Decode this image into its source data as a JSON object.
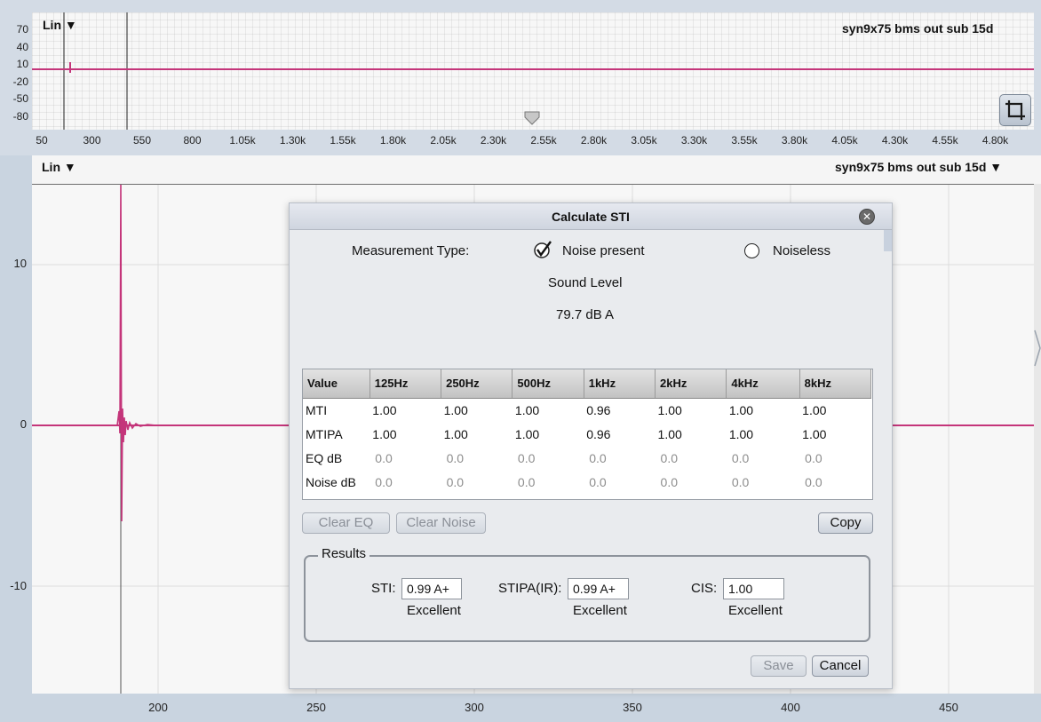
{
  "overview": {
    "scale_label": "Lin",
    "trace_name": "syn9x75 bms out sub 15d",
    "y_ticks": [
      "70",
      "40",
      "10",
      "-20",
      "-50",
      "-80"
    ],
    "x_ticks": [
      "50",
      "300",
      "550",
      "800",
      "1.05k",
      "1.30k",
      "1.55k",
      "1.80k",
      "2.05k",
      "2.30k",
      "2.55k",
      "2.80k",
      "3.05k",
      "3.30k",
      "3.55k",
      "3.80k",
      "4.05k",
      "4.30k",
      "4.55k",
      "4.80k"
    ],
    "trace_color": "#c4357a"
  },
  "main": {
    "scale_label": "Lin",
    "trace_name": "syn9x75 bms out sub 15d",
    "y_ticks": [
      "10",
      "0",
      "-10"
    ],
    "x_ticks": [
      "200",
      "250",
      "300",
      "350",
      "400",
      "450"
    ],
    "trace_color": "#c4357a"
  },
  "dialog": {
    "title": "Calculate STI",
    "measurement_type_label": "Measurement Type:",
    "option_noise_present": "Noise present",
    "option_noiseless": "Noiseless",
    "selected_option": "Noise present",
    "sound_level_label": "Sound Level",
    "sound_level_value": "79.7 dB A",
    "table": {
      "headers": [
        "Value",
        "125Hz",
        "250Hz",
        "500Hz",
        "1kHz",
        "2kHz",
        "4kHz",
        "8kHz"
      ],
      "rows": [
        {
          "label": "MTI",
          "values": [
            "1.00",
            "1.00",
            "1.00",
            "0.96",
            "1.00",
            "1.00",
            "1.00"
          ],
          "dim": false
        },
        {
          "label": "MTIPA",
          "values": [
            "1.00",
            "1.00",
            "1.00",
            "0.96",
            "1.00",
            "1.00",
            "1.00"
          ],
          "dim": false
        },
        {
          "label": "EQ dB",
          "values": [
            "0.0",
            "0.0",
            "0.0",
            "0.0",
            "0.0",
            "0.0",
            "0.0"
          ],
          "dim": true
        },
        {
          "label": "Noise dB",
          "values": [
            "0.0",
            "0.0",
            "0.0",
            "0.0",
            "0.0",
            "0.0",
            "0.0"
          ],
          "dim": true
        }
      ]
    },
    "buttons": {
      "clear_eq": "Clear EQ",
      "clear_noise": "Clear Noise",
      "copy": "Copy",
      "save": "Save",
      "cancel": "Cancel"
    },
    "results": {
      "legend": "Results",
      "sti_label": "STI:",
      "sti_value": "0.99 A+",
      "sti_rating": "Excellent",
      "stipa_label": "STIPA(IR):",
      "stipa_value": "0.99 A+",
      "stipa_rating": "Excellent",
      "cis_label": "CIS:",
      "cis_value": "1.00",
      "cis_rating": "Excellent"
    }
  }
}
